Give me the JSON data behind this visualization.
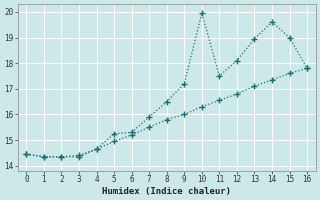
{
  "xlabel": "Humidex (Indice chaleur)",
  "bg_color": "#cce8e8",
  "grid_color": "#b0d8d8",
  "line_color": "#1a6e6e",
  "xlim": [
    -0.5,
    16.5
  ],
  "ylim": [
    13.8,
    20.3
  ],
  "xticks": [
    0,
    1,
    2,
    3,
    4,
    5,
    6,
    7,
    8,
    9,
    10,
    11,
    12,
    13,
    14,
    15,
    16
  ],
  "yticks": [
    14,
    15,
    16,
    17,
    18,
    19,
    20
  ],
  "line1_x": [
    0,
    1,
    2,
    3,
    4,
    5,
    6,
    7,
    8,
    9,
    10,
    11,
    12,
    13,
    14,
    15,
    16
  ],
  "line1_y": [
    14.45,
    14.35,
    14.35,
    14.35,
    14.65,
    15.25,
    15.3,
    15.9,
    16.5,
    17.2,
    19.95,
    17.5,
    18.1,
    18.95,
    19.6,
    19.0,
    17.8
  ],
  "line2_x": [
    0,
    1,
    2,
    3,
    4,
    5,
    6,
    7,
    8,
    9,
    10,
    11,
    12,
    13,
    14,
    15,
    16
  ],
  "line2_y": [
    14.45,
    14.35,
    14.35,
    14.4,
    14.65,
    14.95,
    15.2,
    15.5,
    15.8,
    16.0,
    16.3,
    16.55,
    16.8,
    17.1,
    17.35,
    17.6,
    17.8
  ]
}
